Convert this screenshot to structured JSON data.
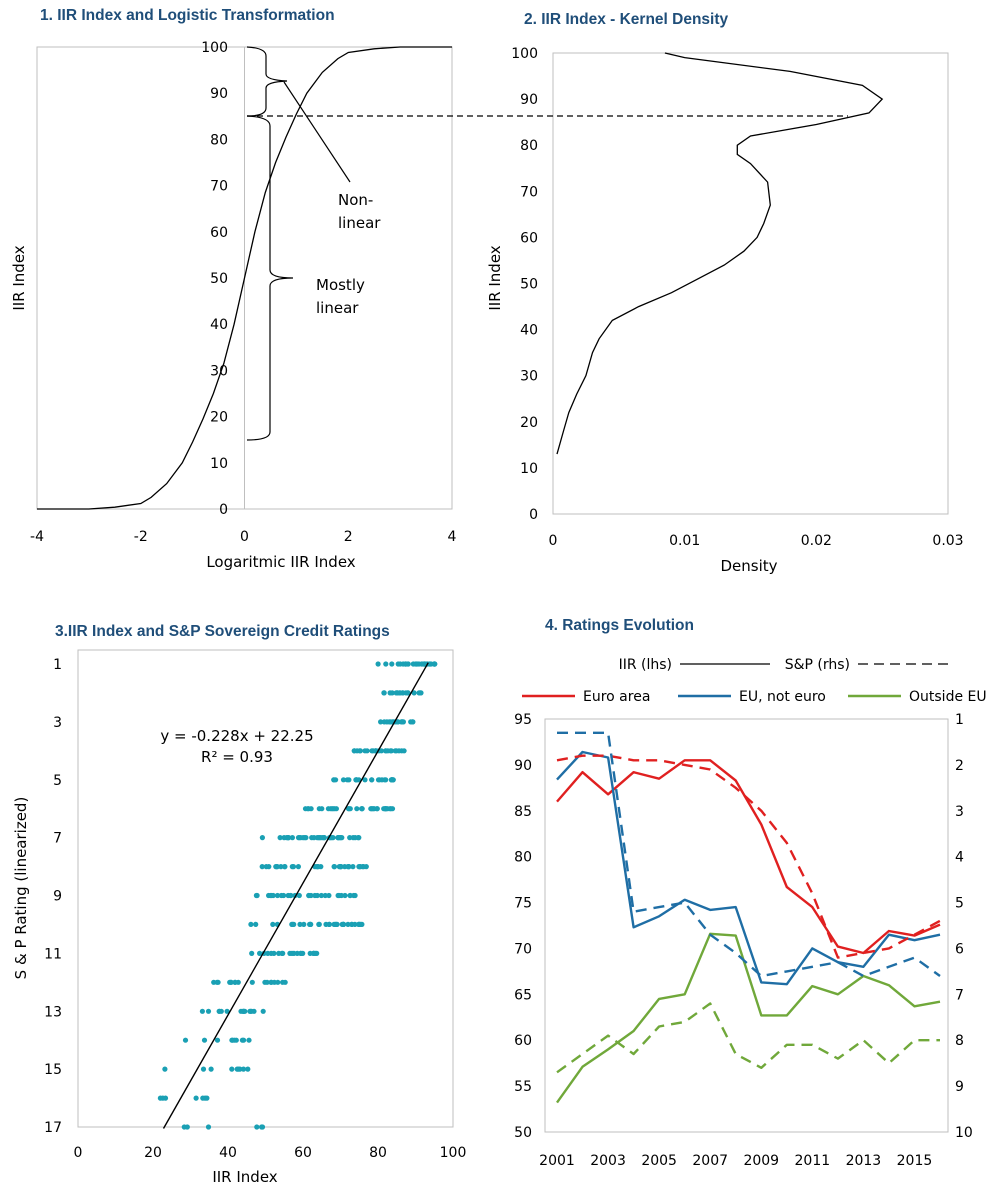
{
  "chart_data": [
    {
      "type": "line",
      "title": "1. IIR Index and Logistic Transformation",
      "xlabel": "Logaritmic IIR Index",
      "ylabel": "IIR Index",
      "xlim": [
        -4,
        4
      ],
      "ylim": [
        0,
        100
      ],
      "x_ticks": [
        "-4",
        "-2",
        "0",
        "2",
        "4"
      ],
      "y_ticks": [
        "0",
        "10",
        "20",
        "30",
        "40",
        "50",
        "60",
        "70",
        "80",
        "90",
        "100"
      ],
      "series": [
        {
          "values_x": [
            -4.0,
            -3.0,
            -2.5,
            -2.0,
            -1.8,
            -1.5,
            -1.2,
            -1.0,
            -0.8,
            -0.6,
            -0.4,
            -0.2,
            0.0,
            0.2,
            0.4,
            0.6,
            0.8,
            1.0,
            1.2,
            1.5,
            1.8,
            2.0,
            2.5,
            3.0,
            4.0
          ],
          "values_y": [
            0.0,
            0.0,
            0.4,
            1.2,
            2.5,
            5.5,
            10.0,
            14.5,
            19.5,
            25.0,
            31.5,
            40.0,
            50.0,
            60.0,
            68.5,
            75.0,
            80.5,
            85.5,
            90.0,
            94.5,
            97.5,
            98.8,
            99.6,
            100.0,
            100.0
          ]
        }
      ],
      "annotations": [
        {
          "text_lines": [
            "Non-",
            "linear"
          ]
        },
        {
          "text_lines": [
            "Mostly",
            "linear"
          ]
        }
      ]
    },
    {
      "type": "line",
      "title": "2. IIR Index - Kernel Density",
      "xlabel": "Density",
      "ylabel": "IIR Index",
      "xlim": [
        0,
        0.03
      ],
      "ylim": [
        0,
        100
      ],
      "x_ticks": [
        "0",
        "0.01",
        "0.02",
        "0.03"
      ],
      "y_ticks": [
        "0",
        "10",
        "20",
        "30",
        "40",
        "50",
        "60",
        "70",
        "80",
        "90",
        "100"
      ],
      "series": [
        {
          "values_x": [
            0.0003,
            0.0008,
            0.0012,
            0.0018,
            0.0025,
            0.003,
            0.0035,
            0.0045,
            0.0065,
            0.009,
            0.011,
            0.013,
            0.0145,
            0.0155,
            0.016,
            0.0165,
            0.0163,
            0.015,
            0.014,
            0.014,
            0.015,
            0.02,
            0.024,
            0.025,
            0.0235,
            0.018,
            0.01,
            0.0085
          ],
          "values_y": [
            13,
            18,
            22,
            26,
            30,
            35,
            38,
            42,
            45,
            48,
            51,
            54,
            57,
            60,
            63,
            67,
            72,
            76,
            78,
            80,
            82,
            84.5,
            87,
            90,
            93,
            96,
            99,
            100
          ]
        }
      ]
    },
    {
      "type": "scatter",
      "title": "3.IIR Index and S&P Sovereign Credit Ratings",
      "xlabel": "IIR Index",
      "ylabel": "S & P Rating (linearized)",
      "xlim": [
        0,
        100
      ],
      "ylim": [
        17,
        1
      ],
      "x_ticks": [
        "0",
        "20",
        "40",
        "60",
        "80",
        "100"
      ],
      "y_ticks": [
        "1",
        "3",
        "5",
        "7",
        "9",
        "11",
        "13",
        "15",
        "17"
      ],
      "equation": "y = -0.228x + 22.25",
      "r_squared": "R² = 0.93",
      "trendline": {
        "slope": -0.228,
        "intercept": 22.25,
        "x_range": [
          22.8,
          93.4
        ]
      },
      "point_bands": [
        {
          "rating": 1,
          "x_min": 80,
          "x_max": 96,
          "count": 34
        },
        {
          "rating": 2,
          "x_min": 80,
          "x_max": 92,
          "count": 18
        },
        {
          "rating": 3,
          "x_min": 77,
          "x_max": 90,
          "count": 18
        },
        {
          "rating": 4,
          "x_min": 71,
          "x_max": 87,
          "count": 24
        },
        {
          "rating": 5,
          "x_min": 68,
          "x_max": 85,
          "count": 28
        },
        {
          "rating": 6,
          "x_min": 59,
          "x_max": 84,
          "count": 36
        },
        {
          "rating": 7,
          "x_min": 47,
          "x_max": 75,
          "count": 38
        },
        {
          "rating": 8,
          "x_min": 48,
          "x_max": 77,
          "count": 34
        },
        {
          "rating": 9,
          "x_min": 47,
          "x_max": 74,
          "count": 30
        },
        {
          "rating": 10,
          "x_min": 40,
          "x_max": 76,
          "count": 34
        },
        {
          "rating": 11,
          "x_min": 41,
          "x_max": 65,
          "count": 22
        },
        {
          "rating": 12,
          "x_min": 36,
          "x_max": 56,
          "count": 18
        },
        {
          "rating": 13,
          "x_min": 31,
          "x_max": 50,
          "count": 16
        },
        {
          "rating": 14,
          "x_min": 26,
          "x_max": 47,
          "count": 10
        },
        {
          "rating": 15,
          "x_min": 17,
          "x_max": 47,
          "count": 9
        },
        {
          "rating": 16,
          "x_min": 18,
          "x_max": 35,
          "count": 7
        },
        {
          "rating": 17,
          "x_min": 25,
          "x_max": 50,
          "count": 6
        }
      ]
    },
    {
      "type": "line",
      "title": "4. Ratings Evolution",
      "x": [
        2001,
        2002,
        2003,
        2004,
        2005,
        2006,
        2007,
        2008,
        2009,
        2010,
        2011,
        2012,
        2013,
        2014,
        2015,
        2016
      ],
      "x_ticks": [
        "2001",
        "2003",
        "2005",
        "2007",
        "2009",
        "2011",
        "2013",
        "2015"
      ],
      "ylim_left": [
        50,
        95
      ],
      "ylim_right": [
        10,
        1
      ],
      "y_ticks_left": [
        "50",
        "55",
        "60",
        "65",
        "70",
        "75",
        "80",
        "85",
        "90",
        "95"
      ],
      "y_ticks_right": [
        "1",
        "2",
        "3",
        "4",
        "5",
        "6",
        "7",
        "8",
        "9",
        "10"
      ],
      "style_legend": [
        {
          "label": "IIR (lhs)",
          "dash": false
        },
        {
          "label": "S&P (rhs)",
          "dash": true
        }
      ],
      "series": [
        {
          "name": "Euro area",
          "color": "#e02020",
          "axis": "left",
          "dash": false,
          "values": [
            86,
            89.2,
            86.8,
            89.2,
            88.5,
            90.5,
            90.5,
            88.3,
            83.5,
            76.7,
            74.5,
            70.2,
            69.5,
            71.9,
            71.4,
            72.6
          ]
        },
        {
          "name": "EU, not euro",
          "color": "#1f6ea5",
          "axis": "left",
          "dash": false,
          "values": [
            88.4,
            91.4,
            90.8,
            72.3,
            73.5,
            75.3,
            74.2,
            74.5,
            66.3,
            66.1,
            70,
            68.5,
            68,
            71.5,
            70.9,
            71.5
          ]
        },
        {
          "name": "Outside EU",
          "color": "#70a83a",
          "axis": "left",
          "dash": false,
          "values": [
            53.2,
            57.1,
            59,
            61,
            64.5,
            65,
            71.6,
            71.4,
            62.7,
            62.7,
            65.9,
            65,
            67,
            66,
            63.7,
            64.2
          ]
        },
        {
          "name": "Euro area",
          "color": "#e02020",
          "axis": "right",
          "dash": true,
          "values": [
            1.9,
            1.8,
            1.8,
            1.9,
            1.9,
            2,
            2.1,
            2.5,
            3,
            3.7,
            4.8,
            6.2,
            6.1,
            6,
            5.7,
            5.4
          ]
        },
        {
          "name": "EU, not euro",
          "color": "#1f6ea5",
          "axis": "right",
          "dash": true,
          "values": [
            1.3,
            1.3,
            1.3,
            5.2,
            5.1,
            5,
            5.7,
            6.1,
            6.6,
            6.5,
            6.4,
            6.3,
            6.6,
            6.4,
            6.2,
            6.6
          ]
        },
        {
          "name": "Outside EU",
          "color": "#70a83a",
          "axis": "right",
          "dash": true,
          "values": [
            8.7,
            8.3,
            7.9,
            8.3,
            7.7,
            7.6,
            7.2,
            8.3,
            8.6,
            8.1,
            8.1,
            8.4,
            8,
            8.5,
            8,
            8
          ]
        }
      ]
    }
  ]
}
